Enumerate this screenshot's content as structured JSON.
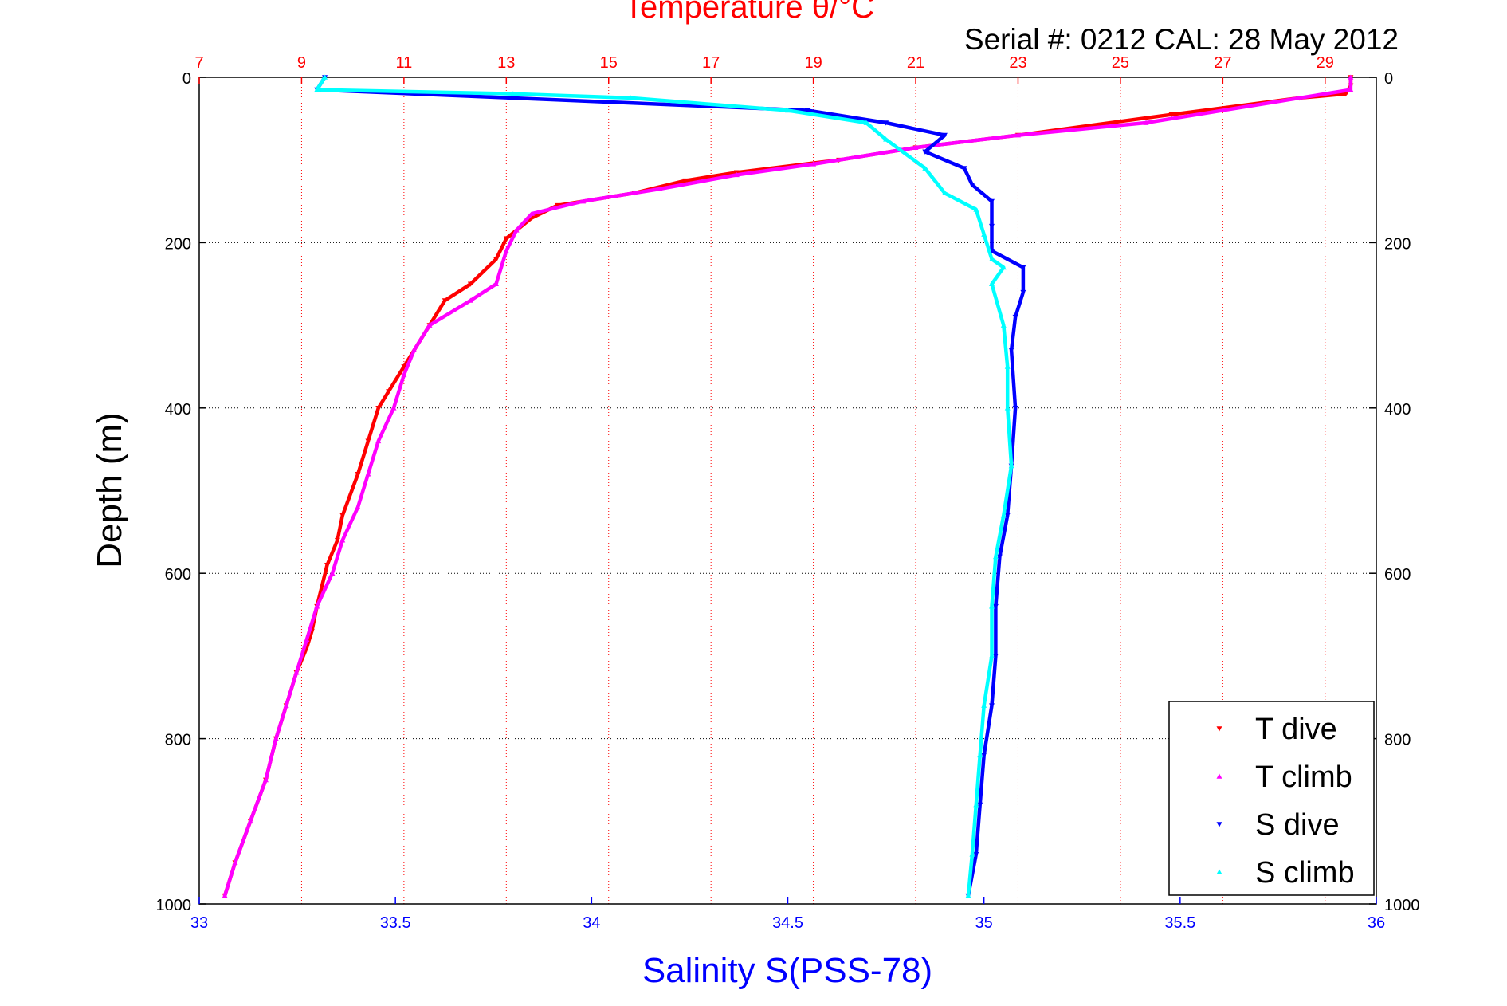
{
  "chart_data": {
    "type": "scatter",
    "title": "Temperature θ/°C",
    "subtitle": "Serial #: 0212  CAL: 28 May 2012",
    "ylabel": "Depth (m)",
    "xlabel": "Salinity S(PSS-78)",
    "y_axis": {
      "min": 0,
      "max": 1000,
      "reversed": true,
      "ticks": [
        0,
        200,
        400,
        600,
        800,
        1000
      ]
    },
    "x_bottom": {
      "min": 33,
      "max": 36,
      "ticks": [
        "33",
        "33.5",
        "34",
        "34.5",
        "35",
        "35.5",
        "36"
      ],
      "color": "#0000ff"
    },
    "x_top": {
      "min": 7,
      "max": 30.0,
      "ticks": [
        "7",
        "9",
        "11",
        "13",
        "15",
        "17",
        "19",
        "21",
        "23",
        "25",
        "27",
        "29"
      ],
      "color": "#ff0000"
    },
    "grid": true,
    "legend": {
      "placement": "bottom-right",
      "entries": [
        "T dive",
        "T climb",
        "S dive",
        "S climb"
      ]
    },
    "series": [
      {
        "name": "T dive",
        "axis": "top",
        "color": "#ff0000",
        "marker": "triangle-down",
        "points": [
          [
            29.5,
            0
          ],
          [
            29.5,
            10
          ],
          [
            29.4,
            20
          ],
          [
            28.5,
            25
          ],
          [
            26,
            45
          ],
          [
            23,
            70
          ],
          [
            21,
            85
          ],
          [
            19.5,
            100
          ],
          [
            17.5,
            115
          ],
          [
            16.5,
            125
          ],
          [
            15.5,
            140
          ],
          [
            14,
            155
          ],
          [
            13.5,
            170
          ],
          [
            13,
            195
          ],
          [
            12.8,
            220
          ],
          [
            12.3,
            250
          ],
          [
            11.8,
            270
          ],
          [
            11.5,
            300
          ],
          [
            11,
            350
          ],
          [
            10.7,
            380
          ],
          [
            10.5,
            400
          ],
          [
            10.3,
            440
          ],
          [
            10.1,
            480
          ],
          [
            9.8,
            530
          ],
          [
            9.7,
            560
          ],
          [
            9.5,
            590
          ],
          [
            9.3,
            640
          ],
          [
            9.2,
            670
          ],
          [
            9.1,
            690
          ],
          [
            8.9,
            720
          ],
          [
            8.7,
            760
          ],
          [
            8.5,
            800
          ],
          [
            8.3,
            850
          ],
          [
            8.0,
            900
          ],
          [
            7.7,
            950
          ],
          [
            7.5,
            990
          ]
        ]
      },
      {
        "name": "T climb",
        "axis": "top",
        "color": "#ff00ff",
        "marker": "triangle-up",
        "points": [
          [
            29.5,
            0
          ],
          [
            29.5,
            15
          ],
          [
            28,
            30
          ],
          [
            25.5,
            55
          ],
          [
            23,
            70
          ],
          [
            21,
            85
          ],
          [
            19,
            105
          ],
          [
            17.5,
            118
          ],
          [
            16,
            135
          ],
          [
            14.5,
            150
          ],
          [
            13.5,
            165
          ],
          [
            13.2,
            185
          ],
          [
            13,
            210
          ],
          [
            12.8,
            250
          ],
          [
            12.3,
            270
          ],
          [
            11.5,
            300
          ],
          [
            11.2,
            330
          ],
          [
            11,
            360
          ],
          [
            10.8,
            400
          ],
          [
            10.5,
            440
          ],
          [
            10.3,
            480
          ],
          [
            10.1,
            520
          ],
          [
            9.8,
            560
          ],
          [
            9.6,
            600
          ],
          [
            9.3,
            640
          ],
          [
            9.1,
            680
          ],
          [
            8.9,
            720
          ],
          [
            8.7,
            760
          ],
          [
            8.5,
            800
          ],
          [
            8.3,
            850
          ],
          [
            8.0,
            900
          ],
          [
            7.7,
            950
          ],
          [
            7.5,
            990
          ]
        ]
      },
      {
        "name": "S dive",
        "axis": "bottom",
        "color": "#0000ff",
        "marker": "triangle-down",
        "points": [
          [
            33.32,
            0
          ],
          [
            33.3,
            15
          ],
          [
            34.55,
            40
          ],
          [
            34.75,
            55
          ],
          [
            34.9,
            70
          ],
          [
            34.85,
            90
          ],
          [
            34.95,
            110
          ],
          [
            34.97,
            130
          ],
          [
            35.02,
            150
          ],
          [
            35.02,
            180
          ],
          [
            35.02,
            210
          ],
          [
            35.1,
            230
          ],
          [
            35.1,
            260
          ],
          [
            35.08,
            290
          ],
          [
            35.07,
            330
          ],
          [
            35.08,
            400
          ],
          [
            35.07,
            470
          ],
          [
            35.06,
            530
          ],
          [
            35.04,
            580
          ],
          [
            35.03,
            640
          ],
          [
            35.03,
            700
          ],
          [
            35.02,
            760
          ],
          [
            35.0,
            820
          ],
          [
            34.99,
            880
          ],
          [
            34.98,
            940
          ],
          [
            34.96,
            990
          ]
        ]
      },
      {
        "name": "S climb",
        "axis": "bottom",
        "color": "#00ffff",
        "marker": "triangle-up",
        "points": [
          [
            33.32,
            0
          ],
          [
            33.3,
            15
          ],
          [
            33.8,
            20
          ],
          [
            34.1,
            25
          ],
          [
            34.5,
            40
          ],
          [
            34.7,
            55
          ],
          [
            34.75,
            75
          ],
          [
            34.85,
            110
          ],
          [
            34.9,
            140
          ],
          [
            34.98,
            160
          ],
          [
            35.0,
            190
          ],
          [
            35.02,
            220
          ],
          [
            35.05,
            230
          ],
          [
            35.02,
            250
          ],
          [
            35.05,
            300
          ],
          [
            35.06,
            350
          ],
          [
            35.06,
            400
          ],
          [
            35.07,
            470
          ],
          [
            35.05,
            530
          ],
          [
            35.03,
            580
          ],
          [
            35.02,
            640
          ],
          [
            35.02,
            700
          ],
          [
            35.0,
            760
          ],
          [
            34.99,
            820
          ],
          [
            34.98,
            880
          ],
          [
            34.97,
            940
          ],
          [
            34.96,
            990
          ]
        ]
      }
    ]
  }
}
